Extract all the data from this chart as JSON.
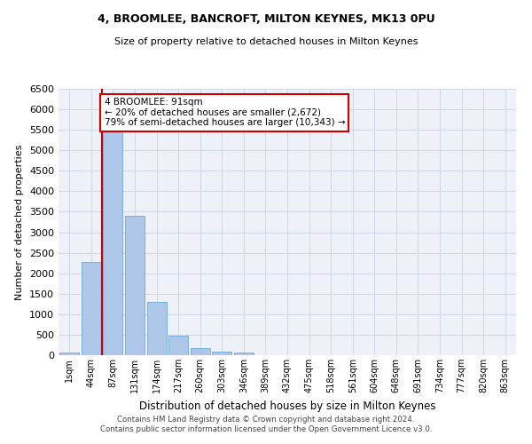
{
  "title1": "4, BROOMLEE, BANCROFT, MILTON KEYNES, MK13 0PU",
  "title2": "Size of property relative to detached houses in Milton Keynes",
  "xlabel": "Distribution of detached houses by size in Milton Keynes",
  "ylabel": "Number of detached properties",
  "categories": [
    "1sqm",
    "44sqm",
    "87sqm",
    "131sqm",
    "174sqm",
    "217sqm",
    "260sqm",
    "303sqm",
    "346sqm",
    "389sqm",
    "432sqm",
    "475sqm",
    "518sqm",
    "561sqm",
    "604sqm",
    "648sqm",
    "691sqm",
    "734sqm",
    "777sqm",
    "820sqm",
    "863sqm"
  ],
  "values": [
    70,
    2280,
    5450,
    3400,
    1310,
    480,
    165,
    80,
    65,
    0,
    0,
    0,
    0,
    0,
    0,
    0,
    0,
    0,
    0,
    0,
    0
  ],
  "bar_color": "#aec6e8",
  "bar_edge_color": "#5a9fd4",
  "grid_color": "#d0d8e8",
  "bg_color": "#eef2f8",
  "annotation_text": "4 BROOMLEE: 91sqm\n← 20% of detached houses are smaller (2,672)\n79% of semi-detached houses are larger (10,343) →",
  "annotation_box_color": "#ffffff",
  "annotation_box_edge": "#cc0000",
  "footnote": "Contains HM Land Registry data © Crown copyright and database right 2024.\nContains public sector information licensed under the Open Government Licence v3.0.",
  "ylim": [
    0,
    6500
  ],
  "yticks": [
    0,
    500,
    1000,
    1500,
    2000,
    2500,
    3000,
    3500,
    4000,
    4500,
    5000,
    5500,
    6000,
    6500
  ]
}
